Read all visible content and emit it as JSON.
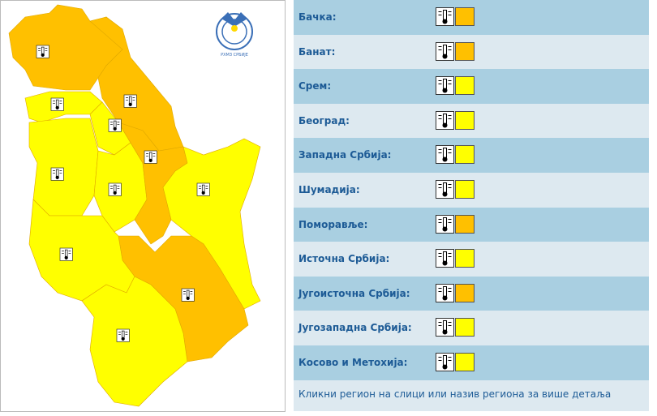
{
  "logo_text": "РХМЗ СРБИЈЕ",
  "regions": [
    {
      "name": "Бачка:",
      "color": "#ffc000"
    },
    {
      "name": "Банат:",
      "color": "#ffc000"
    },
    {
      "name": "Срем:",
      "color": "#ffff00"
    },
    {
      "name": "Београд:",
      "color": "#ffff00"
    },
    {
      "name": "Западна Србија:",
      "color": "#ffff00"
    },
    {
      "name": "Шумадија:",
      "color": "#ffff00"
    },
    {
      "name": "Поморавље:",
      "color": "#ffc000"
    },
    {
      "name": "Источна Србија:",
      "color": "#ffff00"
    },
    {
      "name": "Југоисточна Србија:",
      "color": "#ffc000"
    },
    {
      "name": "Југозападна Србија:",
      "color": "#ffff00"
    },
    {
      "name": "Косово и Метохија:",
      "color": "#ffff00"
    }
  ],
  "footer": "Кликни регион на слици или назив региона за више детаља"
}
